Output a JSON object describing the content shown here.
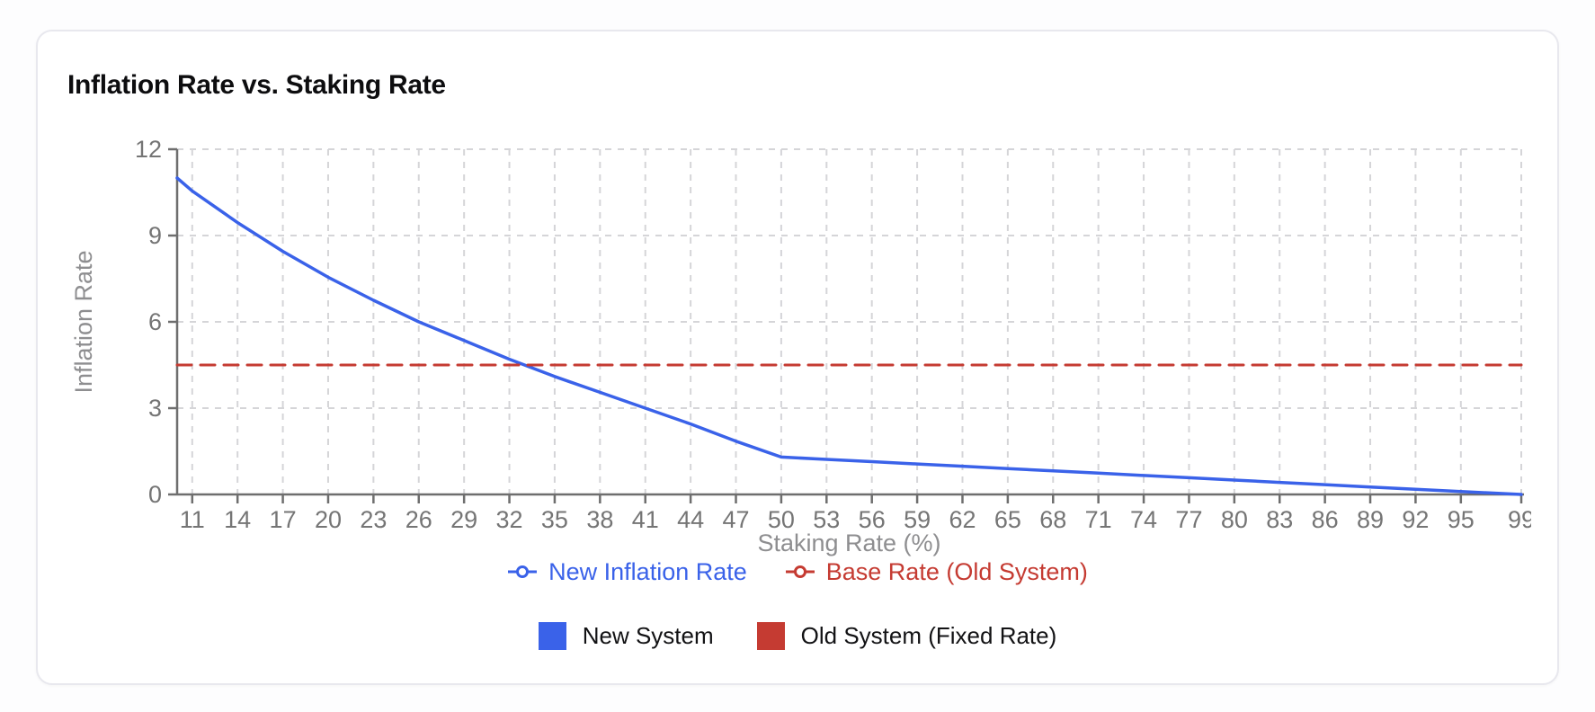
{
  "card": {
    "title": "Inflation Rate vs. Staking Rate"
  },
  "colors": {
    "blue": "#3a62e9",
    "red": "#c53b32",
    "axis_line": "#6e6e6e",
    "tick_label": "#757575",
    "grid_line": "#d5d5d8",
    "axis_title": "#8e8e90",
    "title_text": "#0d0d0f",
    "legend2_text": "#121214",
    "card_border": "#e8e8ee",
    "card_bg": "#ffffff",
    "page_bg": "#fdfdfe"
  },
  "chart_data": {
    "type": "line",
    "title": "Inflation Rate vs. Staking Rate",
    "xlabel": "Staking Rate (%)",
    "ylabel": "Inflation Rate",
    "xlim": [
      10,
      99
    ],
    "ylim": [
      0,
      12
    ],
    "x_ticks": [
      11,
      14,
      17,
      20,
      23,
      26,
      29,
      32,
      35,
      38,
      41,
      44,
      47,
      50,
      53,
      56,
      59,
      62,
      65,
      68,
      71,
      74,
      77,
      80,
      83,
      86,
      89,
      92,
      95,
      99
    ],
    "y_ticks": [
      0,
      3,
      6,
      9,
      12
    ],
    "grid": true,
    "legend_position": "bottom",
    "series": [
      {
        "name": "New Inflation Rate",
        "color": "#3a62e9",
        "style": "solid",
        "width": 3.5,
        "x": [
          10,
          11,
          14,
          17,
          20,
          23,
          26,
          29,
          32,
          35,
          38,
          41,
          44,
          47,
          50,
          53,
          56,
          59,
          62,
          65,
          68,
          71,
          74,
          77,
          80,
          83,
          86,
          89,
          92,
          95,
          99
        ],
        "y": [
          11.0,
          10.55,
          9.45,
          8.45,
          7.55,
          6.75,
          6.0,
          5.35,
          4.7,
          4.1,
          3.55,
          3.0,
          2.45,
          1.85,
          1.3,
          1.22,
          1.14,
          1.06,
          0.98,
          0.9,
          0.82,
          0.74,
          0.66,
          0.58,
          0.5,
          0.42,
          0.34,
          0.26,
          0.18,
          0.1,
          0.0
        ]
      },
      {
        "name": "Base Rate (Old System)",
        "color": "#c53b32",
        "style": "dashed",
        "width": 3,
        "x": [
          10,
          99
        ],
        "y": [
          4.5,
          4.5
        ]
      }
    ]
  },
  "legend_series": {
    "items": [
      {
        "label": "New Inflation Rate",
        "color": "#3a62e9"
      },
      {
        "label": "Base Rate (Old System)",
        "color": "#c53b32"
      }
    ]
  },
  "legend_systems": {
    "items": [
      {
        "label": "New System",
        "color": "#3a62e9"
      },
      {
        "label": "Old System (Fixed Rate)",
        "color": "#c53b32"
      }
    ]
  }
}
